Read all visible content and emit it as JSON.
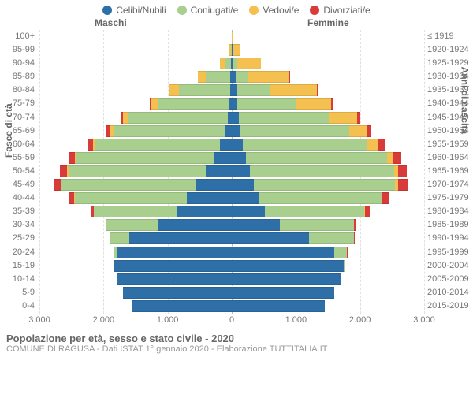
{
  "legend": [
    {
      "label": "Celibi/Nubili",
      "color": "#2e6fa7"
    },
    {
      "label": "Coniugati/e",
      "color": "#a8cf8e"
    },
    {
      "label": "Vedovi/e",
      "color": "#f4c04f"
    },
    {
      "label": "Divorziati/e",
      "color": "#d93a3a"
    }
  ],
  "section_left_label": "Maschi",
  "section_right_label": "Femmine",
  "y_left_title": "Fasce di età",
  "y_right_title": "Anni di nascita",
  "footer_title": "Popolazione per età, sesso e stato civile - 2020",
  "footer_sub": "COMUNE DI RAGUSA - Dati ISTAT 1° gennaio 2020 - Elaborazione TUTTITALIA.IT",
  "xaxis": {
    "max": 3000,
    "ticks": [
      3000,
      2000,
      1000,
      0,
      1000,
      2000,
      3000
    ],
    "tick_labels": [
      "3.000",
      "2.000",
      "1.000",
      "0",
      "1.000",
      "2.000",
      "3.000"
    ]
  },
  "colors": {
    "celibi": "#2e6fa7",
    "coniugati": "#a8cf8e",
    "vedovi": "#f4c04f",
    "divorziati": "#d93a3a",
    "grid": "#e0e0e0",
    "center": "#bbbbbb",
    "bg": "#ffffff"
  },
  "rows": [
    {
      "age": "100+",
      "birth": "≤ 1919",
      "m": {
        "c": 0,
        "co": 0,
        "v": 5,
        "d": 0
      },
      "f": {
        "c": 0,
        "co": 0,
        "v": 20,
        "d": 0
      }
    },
    {
      "age": "95-99",
      "birth": "1920-1924",
      "m": {
        "c": 5,
        "co": 10,
        "v": 30,
        "d": 0
      },
      "f": {
        "c": 10,
        "co": 5,
        "v": 120,
        "d": 0
      }
    },
    {
      "age": "90-94",
      "birth": "1925-1929",
      "m": {
        "c": 10,
        "co": 90,
        "v": 80,
        "d": 0
      },
      "f": {
        "c": 30,
        "co": 40,
        "v": 380,
        "d": 0
      }
    },
    {
      "age": "85-89",
      "birth": "1930-1934",
      "m": {
        "c": 20,
        "co": 380,
        "v": 130,
        "d": 5
      },
      "f": {
        "c": 60,
        "co": 200,
        "v": 640,
        "d": 10
      }
    },
    {
      "age": "80-84",
      "birth": "1935-1939",
      "m": {
        "c": 30,
        "co": 800,
        "v": 150,
        "d": 10
      },
      "f": {
        "c": 80,
        "co": 520,
        "v": 730,
        "d": 20
      }
    },
    {
      "age": "75-79",
      "birth": "1940-1944",
      "m": {
        "c": 40,
        "co": 1100,
        "v": 120,
        "d": 20
      },
      "f": {
        "c": 90,
        "co": 900,
        "v": 560,
        "d": 30
      }
    },
    {
      "age": "70-74",
      "birth": "1945-1949",
      "m": {
        "c": 60,
        "co": 1550,
        "v": 90,
        "d": 40
      },
      "f": {
        "c": 110,
        "co": 1400,
        "v": 450,
        "d": 50
      }
    },
    {
      "age": "65-69",
      "birth": "1950-1954",
      "m": {
        "c": 100,
        "co": 1750,
        "v": 50,
        "d": 60
      },
      "f": {
        "c": 130,
        "co": 1700,
        "v": 280,
        "d": 70
      }
    },
    {
      "age": "60-64",
      "birth": "1955-1959",
      "m": {
        "c": 180,
        "co": 1950,
        "v": 30,
        "d": 80
      },
      "f": {
        "c": 170,
        "co": 1950,
        "v": 170,
        "d": 90
      }
    },
    {
      "age": "55-59",
      "birth": "1960-1964",
      "m": {
        "c": 280,
        "co": 2150,
        "v": 20,
        "d": 100
      },
      "f": {
        "c": 220,
        "co": 2200,
        "v": 100,
        "d": 120
      }
    },
    {
      "age": "50-54",
      "birth": "1965-1969",
      "m": {
        "c": 400,
        "co": 2150,
        "v": 15,
        "d": 110
      },
      "f": {
        "c": 280,
        "co": 2250,
        "v": 60,
        "d": 140
      }
    },
    {
      "age": "45-49",
      "birth": "1970-1974",
      "m": {
        "c": 550,
        "co": 2100,
        "v": 10,
        "d": 110
      },
      "f": {
        "c": 350,
        "co": 2200,
        "v": 40,
        "d": 150
      }
    },
    {
      "age": "40-44",
      "birth": "1975-1979",
      "m": {
        "c": 700,
        "co": 1750,
        "v": 5,
        "d": 80
      },
      "f": {
        "c": 430,
        "co": 1900,
        "v": 20,
        "d": 110
      }
    },
    {
      "age": "35-39",
      "birth": "1980-1984",
      "m": {
        "c": 850,
        "co": 1300,
        "v": 0,
        "d": 50
      },
      "f": {
        "c": 520,
        "co": 1550,
        "v": 10,
        "d": 70
      }
    },
    {
      "age": "30-34",
      "birth": "1985-1989",
      "m": {
        "c": 1150,
        "co": 800,
        "v": 0,
        "d": 20
      },
      "f": {
        "c": 750,
        "co": 1150,
        "v": 5,
        "d": 40
      }
    },
    {
      "age": "25-29",
      "birth": "1990-1994",
      "m": {
        "c": 1600,
        "co": 300,
        "v": 0,
        "d": 5
      },
      "f": {
        "c": 1200,
        "co": 700,
        "v": 0,
        "d": 15
      }
    },
    {
      "age": "20-24",
      "birth": "1995-1999",
      "m": {
        "c": 1800,
        "co": 50,
        "v": 0,
        "d": 0
      },
      "f": {
        "c": 1600,
        "co": 200,
        "v": 0,
        "d": 5
      }
    },
    {
      "age": "15-19",
      "birth": "2000-2004",
      "m": {
        "c": 1850,
        "co": 0,
        "v": 0,
        "d": 0
      },
      "f": {
        "c": 1750,
        "co": 10,
        "v": 0,
        "d": 0
      }
    },
    {
      "age": "10-14",
      "birth": "2005-2009",
      "m": {
        "c": 1800,
        "co": 0,
        "v": 0,
        "d": 0
      },
      "f": {
        "c": 1700,
        "co": 0,
        "v": 0,
        "d": 0
      }
    },
    {
      "age": "5-9",
      "birth": "2010-2014",
      "m": {
        "c": 1700,
        "co": 0,
        "v": 0,
        "d": 0
      },
      "f": {
        "c": 1600,
        "co": 0,
        "v": 0,
        "d": 0
      }
    },
    {
      "age": "0-4",
      "birth": "2015-2019",
      "m": {
        "c": 1550,
        "co": 0,
        "v": 0,
        "d": 0
      },
      "f": {
        "c": 1450,
        "co": 0,
        "v": 0,
        "d": 0
      }
    }
  ]
}
